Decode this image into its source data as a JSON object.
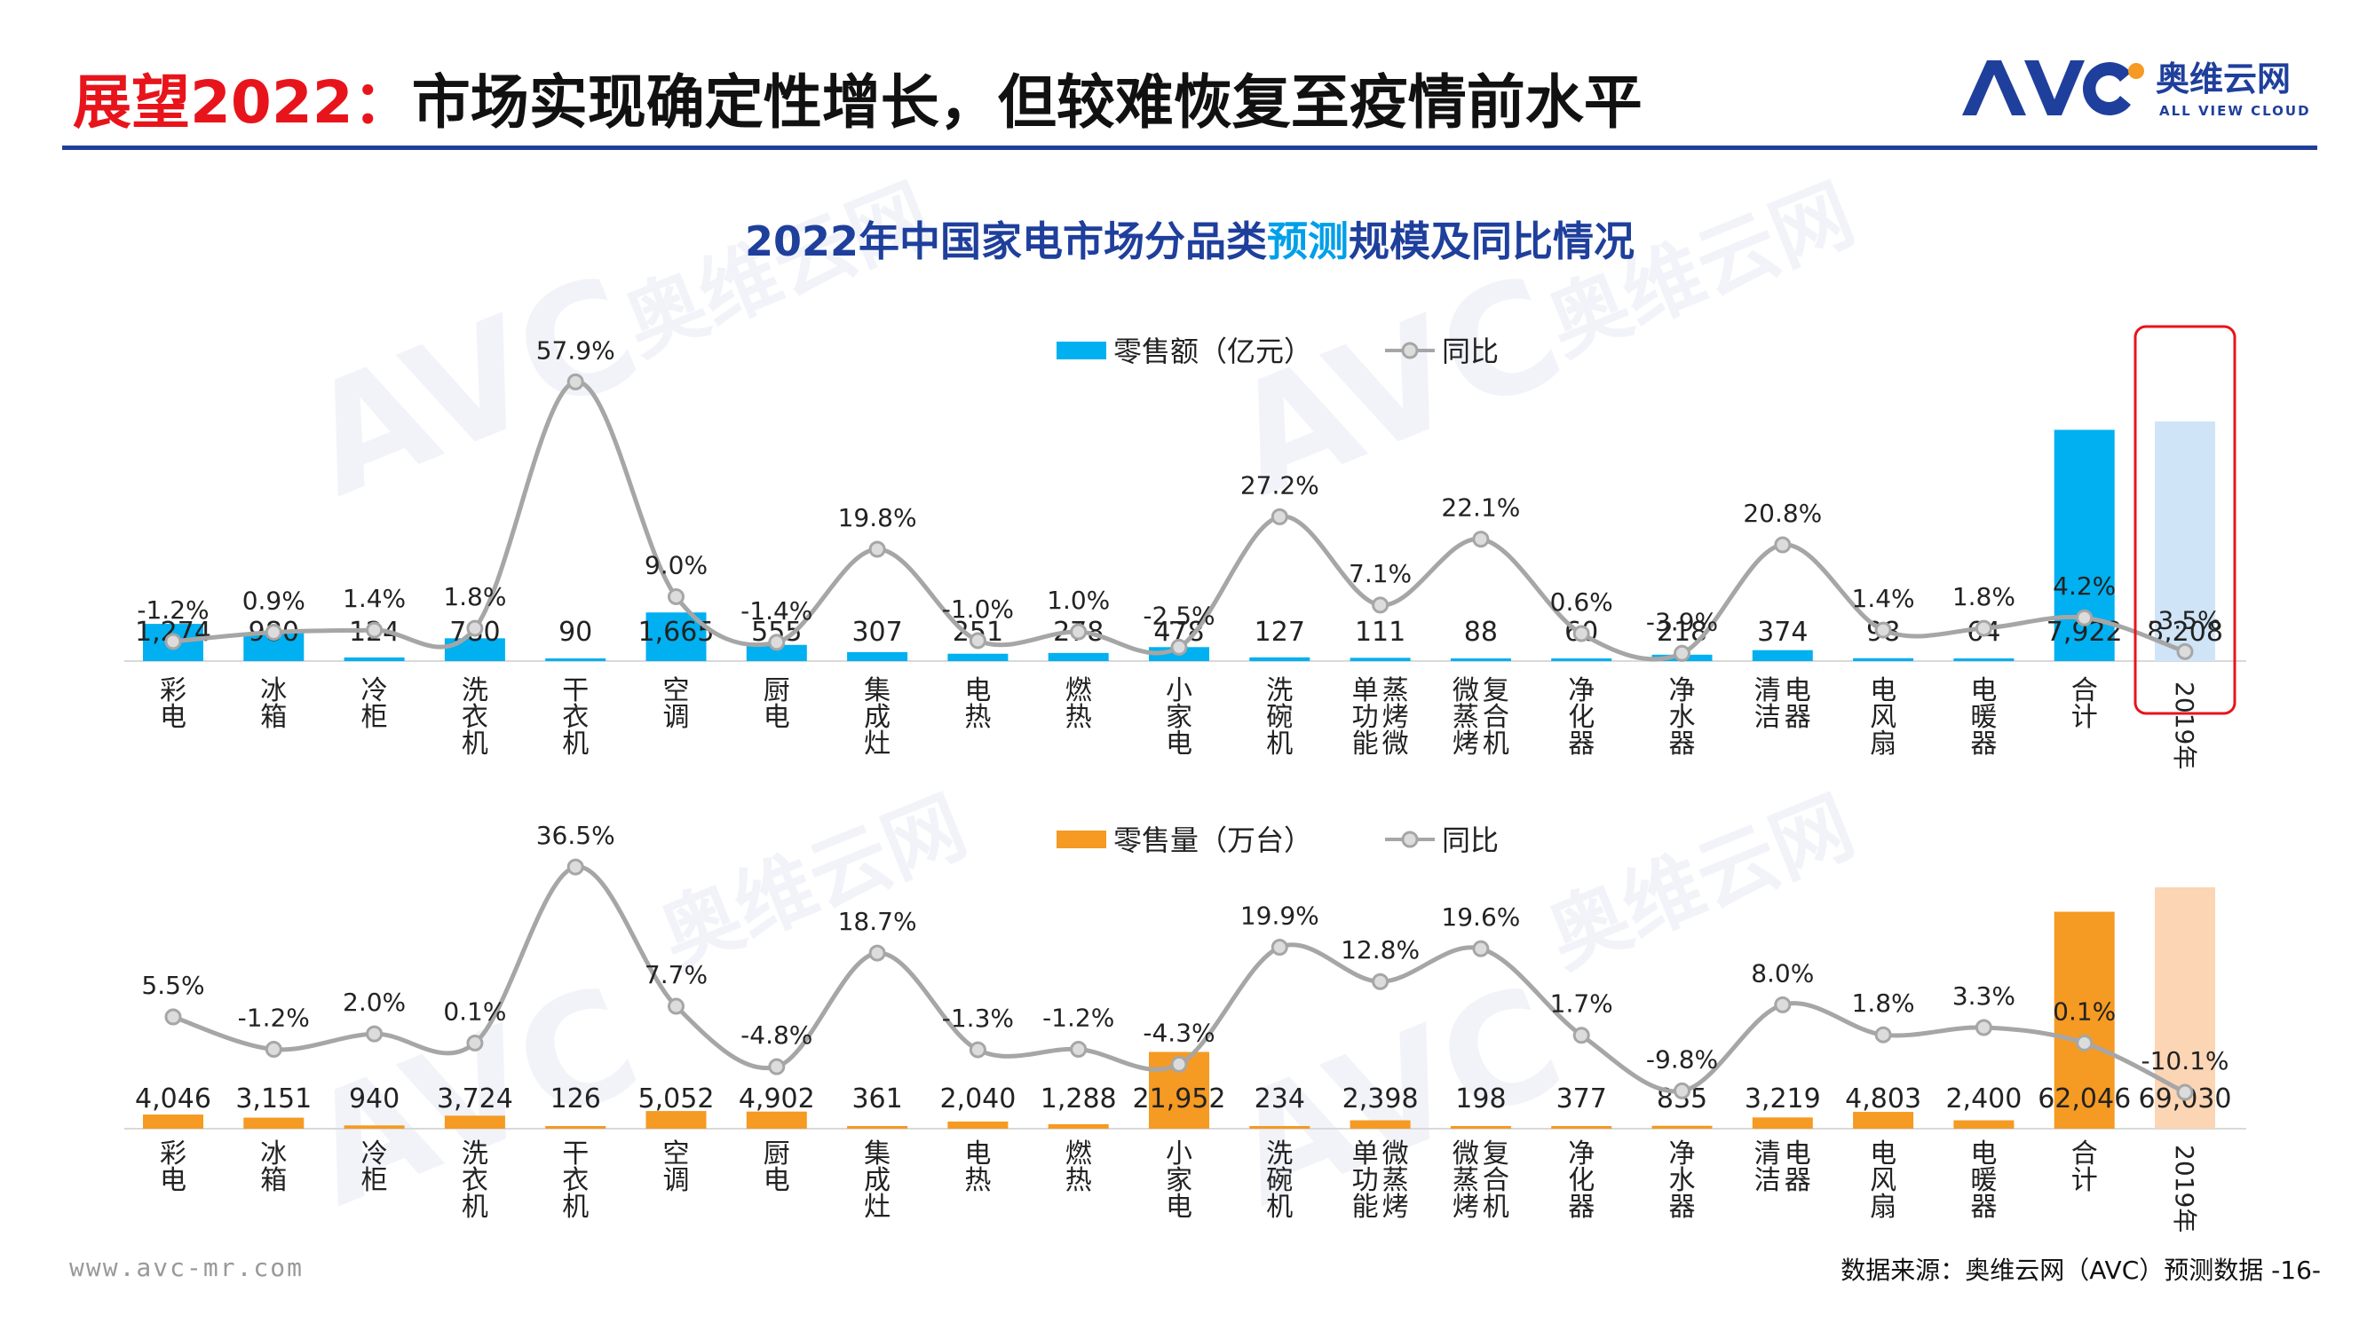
{
  "header": {
    "title_red": "展望2022：",
    "title_black": "市场实现确定性增长，但较难恢复至疫情前水平",
    "brand_text_cn": "奥维云网",
    "brand_text_en": "ALL VIEW CLOUD",
    "brand_mark": "AVC"
  },
  "footer": {
    "url": "www.avc-mr.com",
    "source": "数据来源：奥维云网（AVC）预测数据 -16-"
  },
  "colors": {
    "title_red": "#e8141b",
    "rule_blue": "#1f3f9c",
    "bar_blue": "#00b0f0",
    "bar_light_blue": "#cfe4f7",
    "bar_orange": "#f59a23",
    "bar_light_orange": "#fcd5b4",
    "line_gray": "#a6a6a6",
    "highlight_red": "#e8141b"
  },
  "chart_data": [
    {
      "type": "bar",
      "title": "2022年中国家电市场分品类预测规模及同比情况",
      "title_highlight": "预测",
      "legend": {
        "bar_label": "零售额（亿元）",
        "line_label": "同比"
      },
      "categories": [
        "彩电",
        "冰箱",
        "冷柜",
        "洗衣机",
        "干衣机",
        "空调",
        "厨电",
        "集成灶",
        "电热",
        "燃热",
        "小家电",
        "洗碗机",
        "单功能蒸烤微",
        "微蒸烤复合机",
        "净化器",
        "净水器",
        "清洁电器",
        "电风扇",
        "电暖器",
        "合计",
        "2019年"
      ],
      "series": [
        {
          "name": "零售额（亿元）",
          "kind": "bar",
          "values": [
            1274,
            980,
            124,
            780,
            90,
            1665,
            555,
            307,
            251,
            278,
            478,
            127,
            111,
            88,
            60,
            218,
            374,
            98,
            64,
            7922,
            8208
          ],
          "labels": [
            "1,274",
            "980",
            "124",
            "780",
            "90",
            "1,665",
            "555",
            "307",
            "251",
            "278",
            "478",
            "127",
            "111",
            "88",
            "60",
            "218",
            "374",
            "98",
            "64",
            "7,922",
            "8,208"
          ]
        },
        {
          "name": "同比",
          "kind": "line",
          "values": [
            -1.2,
            0.9,
            1.4,
            1.8,
            57.9,
            9.0,
            -1.4,
            19.8,
            -1.0,
            1.0,
            -2.5,
            27.2,
            7.1,
            22.1,
            0.6,
            -3.9,
            20.8,
            1.4,
            1.8,
            4.2,
            -3.5
          ],
          "labels": [
            "-1.2%",
            "0.9%",
            "1.4%",
            "1.8%",
            "57.9%",
            "9.0%",
            "-1.4%",
            "19.8%",
            "-1.0%",
            "1.0%",
            "-2.5%",
            "27.2%",
            "7.1%",
            "22.1%",
            "0.6%",
            "-3.9%",
            "20.8%",
            "1.4%",
            "1.8%",
            "4.2%",
            "-3.5%"
          ]
        }
      ],
      "highlighted_category": "2019年"
    },
    {
      "type": "bar",
      "legend": {
        "bar_label": "零售量（万台）",
        "line_label": "同比"
      },
      "categories": [
        "彩电",
        "冰箱",
        "冷柜",
        "洗衣机",
        "干衣机",
        "空调",
        "厨电",
        "集成灶",
        "电热",
        "燃热",
        "小家电",
        "洗碗机",
        "单功能微蒸烤",
        "微蒸烤复合机",
        "净化器",
        "净水器",
        "清洁电器",
        "电风扇",
        "电暖器",
        "合计",
        "2019年"
      ],
      "series": [
        {
          "name": "零售量（万台）",
          "kind": "bar",
          "values": [
            4046,
            3151,
            940,
            3724,
            126,
            5052,
            4902,
            361,
            2040,
            1288,
            21952,
            234,
            2398,
            198,
            377,
            835,
            3219,
            4803,
            2400,
            62046,
            69030
          ],
          "labels": [
            "4,046",
            "3,151",
            "940",
            "3,724",
            "126",
            "5,052",
            "4,902",
            "361",
            "2,040",
            "1,288",
            "21,952",
            "234",
            "2,398",
            "198",
            "377",
            "835",
            "3,219",
            "4,803",
            "2,400",
            "62,046",
            "69,030"
          ]
        },
        {
          "name": "同比",
          "kind": "line",
          "values": [
            5.5,
            -1.2,
            2.0,
            0.1,
            36.5,
            7.7,
            -4.8,
            18.7,
            -1.3,
            -1.2,
            -4.3,
            19.9,
            12.8,
            19.6,
            1.7,
            -9.8,
            8.0,
            1.8,
            3.3,
            0.1,
            -10.1
          ],
          "labels": [
            "5.5%",
            "-1.2%",
            "2.0%",
            "0.1%",
            "36.5%",
            "7.7%",
            "-4.8%",
            "18.7%",
            "-1.3%",
            "-1.2%",
            "-4.3%",
            "19.9%",
            "12.8%",
            "19.6%",
            "1.7%",
            "-9.8%",
            "8.0%",
            "1.8%",
            "3.3%",
            "0.1%",
            "-10.1%"
          ]
        }
      ]
    }
  ]
}
